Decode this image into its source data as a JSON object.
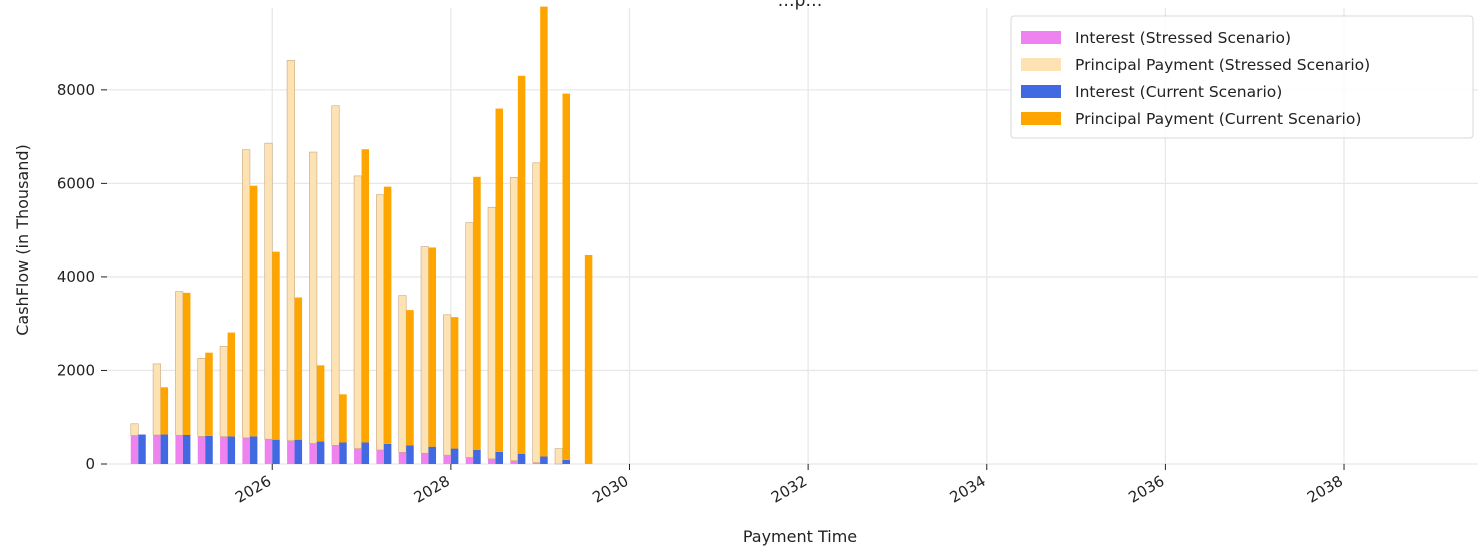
{
  "chart_data": {
    "type": "bar",
    "title": "…p…",
    "xlabel": "Payment Time",
    "ylabel": "CashFlow (in Thousand)",
    "xlim": [
      2024.15,
      2039.5
    ],
    "ylim": [
      0,
      9750
    ],
    "x_ticks": [
      2026,
      2028,
      2030,
      2032,
      2034,
      2036,
      2038
    ],
    "y_ticks": [
      0,
      2000,
      4000,
      6000,
      8000
    ],
    "grid": true,
    "legend_position": "top-right",
    "x": [
      2024.5,
      2024.75,
      2025.0,
      2025.25,
      2025.5,
      2025.75,
      2026.0,
      2026.25,
      2026.5,
      2026.75,
      2027.0,
      2027.25,
      2027.5,
      2027.75,
      2028.0,
      2028.25,
      2028.5,
      2028.75,
      2029.0,
      2029.25,
      2029.5
    ],
    "series": [
      {
        "name": "Interest (Stressed Scenario)",
        "scenario": "stressed",
        "color": "#ee82ee",
        "values": [
          610,
          620,
          615,
          590,
          585,
          560,
          530,
          500,
          440,
          400,
          330,
          300,
          250,
          230,
          190,
          140,
          110,
          70,
          30,
          0,
          0
        ]
      },
      {
        "name": "Principal Payment (Stressed Scenario)",
        "scenario": "stressed",
        "color": "#fde2b4",
        "values": [
          250,
          1520,
          3070,
          1670,
          1930,
          6160,
          6330,
          8130,
          6230,
          7260,
          5830,
          5460,
          3350,
          4420,
          3000,
          5020,
          5380,
          6060,
          6410,
          330,
          0
        ]
      },
      {
        "name": "Interest (Current Scenario)",
        "scenario": "current",
        "color": "#4169e1",
        "values": [
          630,
          630,
          620,
          600,
          590,
          590,
          520,
          520,
          480,
          460,
          460,
          430,
          400,
          370,
          330,
          300,
          260,
          220,
          160,
          90,
          0
        ]
      },
      {
        "name": "Principal Payment (Current Scenario)",
        "scenario": "current",
        "color": "#ffa500",
        "values": [
          0,
          1010,
          3040,
          1780,
          2220,
          5360,
          4020,
          3040,
          1630,
          1030,
          6270,
          5500,
          2890,
          4260,
          2810,
          5840,
          7340,
          8080,
          9620,
          7830,
          4340
        ]
      },
      {
        "name": "",
        "scenario": "current",
        "color": "#ffa500",
        "values": [
          0,
          0,
          0,
          0,
          0,
          0,
          0,
          0,
          0,
          0,
          0,
          0,
          0,
          0,
          0,
          0,
          0,
          0,
          0,
          0,
          130
        ]
      }
    ]
  }
}
